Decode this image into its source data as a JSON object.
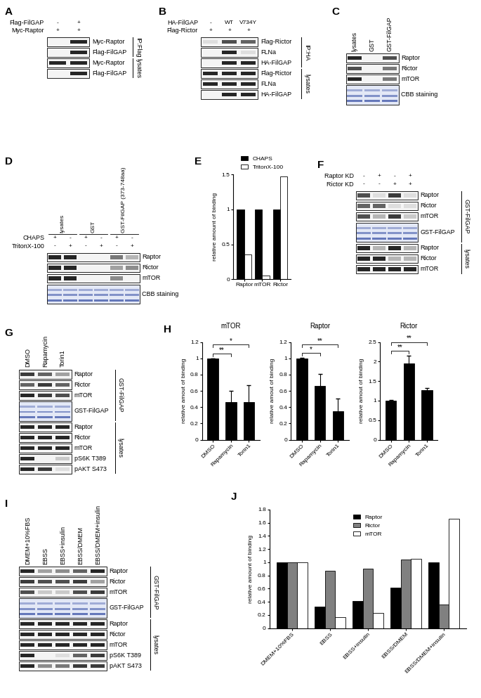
{
  "blots": [
    {
      "panel": "A",
      "lanes": 2,
      "header": [
        {
          "label": "Flag-FilGAP",
          "marks": [
            "-",
            "+"
          ]
        },
        {
          "label": "Myc-Raptor",
          "marks": [
            "+",
            "+"
          ]
        }
      ],
      "rows": [
        {
          "label": "Myc-Raptor",
          "bands": [
            0,
            1
          ]
        },
        {
          "label": "Flag-FilGAP",
          "bands": [
            0,
            1
          ]
        },
        {
          "label": "Myc-Raptor",
          "bands": [
            1,
            1
          ]
        },
        {
          "label": "Flag-FilGAP",
          "bands": [
            0,
            1
          ]
        }
      ],
      "groups": [
        {
          "label": "IP:Flag",
          "rows": [
            0,
            1
          ]
        },
        {
          "label": "lysates",
          "rows": [
            2,
            3
          ]
        }
      ]
    },
    {
      "panel": "B",
      "lanes": 3,
      "header": [
        {
          "label": "HA-FilGAP",
          "marks": [
            "-",
            "WT",
            "V734Y"
          ]
        },
        {
          "label": "Flag-Rictor",
          "marks": [
            "+",
            "+",
            "+"
          ]
        }
      ],
      "rows": [
        {
          "label": "Flag-Rictor",
          "bands": [
            0.1,
            0.8,
            0.7
          ]
        },
        {
          "label": "FLNa",
          "bands": [
            0,
            1,
            0.1
          ]
        },
        {
          "label": "HA-FilGAP",
          "bands": [
            0,
            1,
            1
          ]
        },
        {
          "label": "Flag-Rictor",
          "bands": [
            1,
            1,
            1
          ]
        },
        {
          "label": "FLNa",
          "bands": [
            1,
            1,
            1
          ]
        },
        {
          "label": "HA-FilGAP",
          "bands": [
            0,
            1,
            1
          ]
        }
      ],
      "groups": [
        {
          "label": "IP:HA",
          "rows": [
            0,
            2
          ]
        },
        {
          "label": "lysates",
          "rows": [
            3,
            5
          ]
        }
      ]
    },
    {
      "panel": "C",
      "lanes": 3,
      "lane_labels": [
        "lysates",
        "GST",
        "GST-FilGAP"
      ],
      "rows": [
        {
          "label": "Raptor",
          "bands": [
            1,
            0,
            0.8
          ]
        },
        {
          "label": "Rictor",
          "bands": [
            0.8,
            0,
            0.6
          ]
        },
        {
          "label": "mTOR",
          "bands": [
            1,
            0,
            0.6
          ]
        },
        {
          "label": "CBB staining",
          "stain": true,
          "bands": [
            1,
            1,
            1
          ]
        }
      ]
    },
    {
      "panel": "D",
      "lanes": 6,
      "lane_groups": [
        {
          "label": "lysates",
          "lanes": [
            0,
            1
          ]
        },
        {
          "label": "GST",
          "lanes": [
            2,
            3
          ]
        },
        {
          "label": "GST-FilGAP (373-748aa)",
          "lanes": [
            4,
            5
          ]
        }
      ],
      "header": [
        {
          "label": "CHAPS",
          "marks": [
            "+",
            "-",
            "+",
            "-",
            "+",
            "-"
          ]
        },
        {
          "label": "TritonX-100",
          "marks": [
            "-",
            "+",
            "-",
            "+",
            "-",
            "+"
          ]
        }
      ],
      "rows": [
        {
          "label": "Raptor",
          "bands": [
            1,
            1,
            0,
            0,
            0.6,
            0.3
          ]
        },
        {
          "label": "Rictor",
          "bands": [
            1,
            1,
            0,
            0,
            0.4,
            0.5
          ]
        },
        {
          "label": "mTOR",
          "bands": [
            1,
            1,
            0,
            0,
            0.5,
            0
          ]
        },
        {
          "label": "CBB staining",
          "stain": true,
          "bands": [
            1,
            1,
            1,
            1,
            1,
            1
          ]
        }
      ]
    },
    {
      "panel": "F",
      "lanes": 4,
      "header": [
        {
          "label": "Raptor KD",
          "marks": [
            "-",
            "+",
            "-",
            "+"
          ]
        },
        {
          "label": "Rictor KD",
          "marks": [
            "-",
            "-",
            "+",
            "+"
          ]
        }
      ],
      "rows": [
        {
          "label": "Raptor",
          "bands": [
            0.8,
            0.1,
            0.9,
            0.1
          ]
        },
        {
          "label": "Rictor",
          "bands": [
            0.7,
            0.7,
            0.1,
            0.1
          ]
        },
        {
          "label": "mTOR",
          "bands": [
            0.8,
            0.3,
            0.9,
            0.2
          ]
        },
        {
          "label": "GST-FilGAP",
          "stain": true,
          "bands": [
            1,
            1,
            1,
            1
          ]
        },
        {
          "label": "Raptor",
          "bands": [
            1,
            0.3,
            1,
            0.3
          ]
        },
        {
          "label": "Rictor",
          "bands": [
            1,
            1,
            0.3,
            0.3
          ]
        },
        {
          "label": "mTOR",
          "bands": [
            1,
            1,
            1,
            1
          ]
        }
      ],
      "groups": [
        {
          "label": "GST-FilGAP",
          "rows": [
            0,
            3
          ]
        },
        {
          "label": "lysates",
          "rows": [
            4,
            6
          ]
        }
      ]
    },
    {
      "panel": "G",
      "lanes": 3,
      "lane_labels": [
        "DMSO",
        "Rapamycin",
        "Torin1"
      ],
      "rows": [
        {
          "label": "Raptor",
          "bands": [
            0.9,
            0.7,
            0.4
          ]
        },
        {
          "label": "Rictor",
          "bands": [
            0.7,
            0.9,
            0.7
          ]
        },
        {
          "label": "mTOR",
          "bands": [
            1,
            0.9,
            0.8
          ]
        },
        {
          "label": "GST-FilGAP",
          "stain": true,
          "bands": [
            1,
            1,
            1
          ]
        },
        {
          "label": "Raptor",
          "bands": [
            1,
            1,
            1
          ]
        },
        {
          "label": "Rictor",
          "bands": [
            1,
            1,
            1
          ]
        },
        {
          "label": "mTOR",
          "bands": [
            1,
            1,
            1
          ]
        },
        {
          "label": "pS6K T389",
          "bands": [
            1,
            0,
            0.2
          ]
        },
        {
          "label": "pAKT S473",
          "bands": [
            1,
            0.9,
            0.1
          ]
        }
      ],
      "groups": [
        {
          "label": "GST-FilGAP",
          "rows": [
            0,
            3
          ]
        },
        {
          "label": "lysates",
          "rows": [
            4,
            8
          ]
        }
      ]
    },
    {
      "panel": "I",
      "lanes": 5,
      "lane_labels": [
        "DMEM+10%FBS",
        "EBSS",
        "EBSS+insulin",
        "EBSS/DMEM",
        "EBSS/DMEM+insulin"
      ],
      "rows": [
        {
          "label": "Raptor",
          "bands": [
            1,
            0.4,
            0.5,
            0.7,
            1
          ]
        },
        {
          "label": "Rictor",
          "bands": [
            0.9,
            0.8,
            0.8,
            0.9,
            0.4
          ]
        },
        {
          "label": "mTOR",
          "bands": [
            0.8,
            0.2,
            0.2,
            0.8,
            0.9
          ]
        },
        {
          "label": "GST-FilGAP",
          "stain": true,
          "bands": [
            1,
            1,
            1,
            1,
            1
          ]
        },
        {
          "label": "Raptor",
          "bands": [
            1,
            1,
            1,
            1,
            1
          ]
        },
        {
          "label": "Rictor",
          "bands": [
            1,
            1,
            1,
            1,
            1
          ]
        },
        {
          "label": "mTOR",
          "bands": [
            1,
            1,
            1,
            1,
            1
          ]
        },
        {
          "label": "pS6K T389",
          "bands": [
            1,
            0,
            0.1,
            0.7,
            0.9
          ]
        },
        {
          "label": "pAKT S473",
          "bands": [
            1,
            0.5,
            0.6,
            0.9,
            0.9
          ]
        }
      ],
      "groups": [
        {
          "label": "GST-FilGAP",
          "rows": [
            0,
            3
          ]
        },
        {
          "label": "lysates",
          "rows": [
            4,
            8
          ]
        }
      ]
    }
  ],
  "chart_data": [
    {
      "panel": "E",
      "type": "bar",
      "categories": [
        "Raptor",
        "mTOR",
        "Rictor"
      ],
      "series": [
        {
          "name": "CHAPS",
          "color": "#000000",
          "values": [
            1,
            1,
            1
          ]
        },
        {
          "name": "TritonX-100",
          "color": "#ffffff",
          "values": [
            0.35,
            0.05,
            1.47
          ]
        }
      ],
      "ylabel": "relative amount of binding",
      "ylim": [
        0,
        1.5
      ],
      "yticks": [
        0,
        0.5,
        1,
        1.5
      ],
      "legend": "top"
    },
    {
      "panel": "H",
      "type": "bar",
      "title": "mTOR",
      "categories": [
        "DMSO",
        "Rapamycin",
        "Torin1"
      ],
      "values": [
        1,
        0.46,
        0.46
      ],
      "errors": [
        0,
        0.14,
        0.21
      ],
      "color": "#000000",
      "ylabel": "relative amout of binding",
      "ylim": [
        0,
        1.2
      ],
      "yticks": [
        0,
        0.2,
        0.4,
        0.6,
        0.8,
        1,
        1.2
      ],
      "significance": [
        {
          "from": "DMSO",
          "to": "Rapamycin",
          "label": "**"
        },
        {
          "from": "DMSO",
          "to": "Torin1",
          "label": "*"
        }
      ]
    },
    {
      "type": "bar",
      "title": "Raptor",
      "categories": [
        "DMSO",
        "Rapamycin",
        "Torin1"
      ],
      "values": [
        1,
        0.66,
        0.35
      ],
      "errors": [
        0.005,
        0.15,
        0.16
      ],
      "color": "#000000",
      "ylabel": "relative amout of binding",
      "ylim": [
        0,
        1.2
      ],
      "yticks": [
        0,
        0.2,
        0.4,
        0.6,
        0.8,
        1,
        1.2
      ],
      "significance": [
        {
          "from": "DMSO",
          "to": "Rapamycin",
          "label": "*"
        },
        {
          "from": "DMSO",
          "to": "Torin1",
          "label": "**"
        }
      ]
    },
    {
      "type": "bar",
      "title": "Rictor",
      "categories": [
        "DMSO",
        "Rapamycin",
        "Torin1"
      ],
      "values": [
        1,
        1.95,
        1.27
      ],
      "errors": [
        0.01,
        0.2,
        0.06
      ],
      "color": "#000000",
      "ylabel": "relative amout of binding",
      "ylim": [
        0,
        2.5
      ],
      "yticks": [
        0,
        0.5,
        1,
        1.5,
        2,
        2.5
      ],
      "significance": [
        {
          "from": "DMSO",
          "to": "Rapamycin",
          "label": "**"
        },
        {
          "from": "DMSO",
          "to": "Torin1",
          "label": "**"
        }
      ]
    },
    {
      "panel": "J",
      "type": "bar",
      "categories": [
        "DMEM+10%FBS",
        "EBSS",
        "EBSS+insulin",
        "EBSS/DMEM",
        "EBSS/DMEM+insulin"
      ],
      "series": [
        {
          "name": "Raptor",
          "color": "#000000",
          "values": [
            1,
            0.33,
            0.41,
            0.61,
            1.0
          ]
        },
        {
          "name": "Rictor",
          "color": "#808080",
          "values": [
            1,
            0.87,
            0.9,
            1.04,
            0.36
          ]
        },
        {
          "name": "mTOR",
          "color": "#ffffff",
          "values": [
            1,
            0.17,
            0.23,
            1.05,
            1.66
          ]
        }
      ],
      "ylabel": "relative amount of binding",
      "ylim": [
        0,
        1.8
      ],
      "yticks": [
        0,
        0.2,
        0.4,
        0.6,
        0.8,
        1,
        1.2,
        1.4,
        1.6,
        1.8
      ],
      "legend": "upper center"
    }
  ]
}
